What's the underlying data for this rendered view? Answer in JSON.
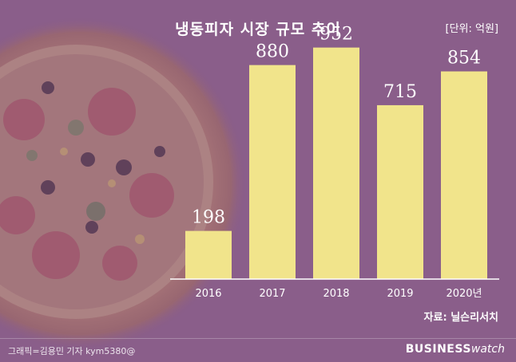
{
  "chart_data": {
    "type": "bar",
    "title": "냉동피자 시장 규모 추이",
    "unit_label": "[단위: 억원]",
    "categories": [
      "2016",
      "2017",
      "2018",
      "2019",
      "2020년"
    ],
    "values": [
      198,
      880,
      952,
      715,
      854
    ],
    "value_labels": [
      "198",
      "880",
      "952",
      "715",
      "854"
    ],
    "ylim": [
      0,
      1000
    ],
    "grid": false,
    "legend": "none",
    "source": "자료: 닐슨리서치"
  },
  "footer": {
    "credit": "그래픽=김용민 기자 kym5380@",
    "logo_bold": "BUSINESS",
    "logo_light": "watch"
  },
  "colors": {
    "bar": "#f1e48b",
    "background": "#8a5e8a",
    "text": "#ffffff",
    "axis": "#ffffff"
  }
}
